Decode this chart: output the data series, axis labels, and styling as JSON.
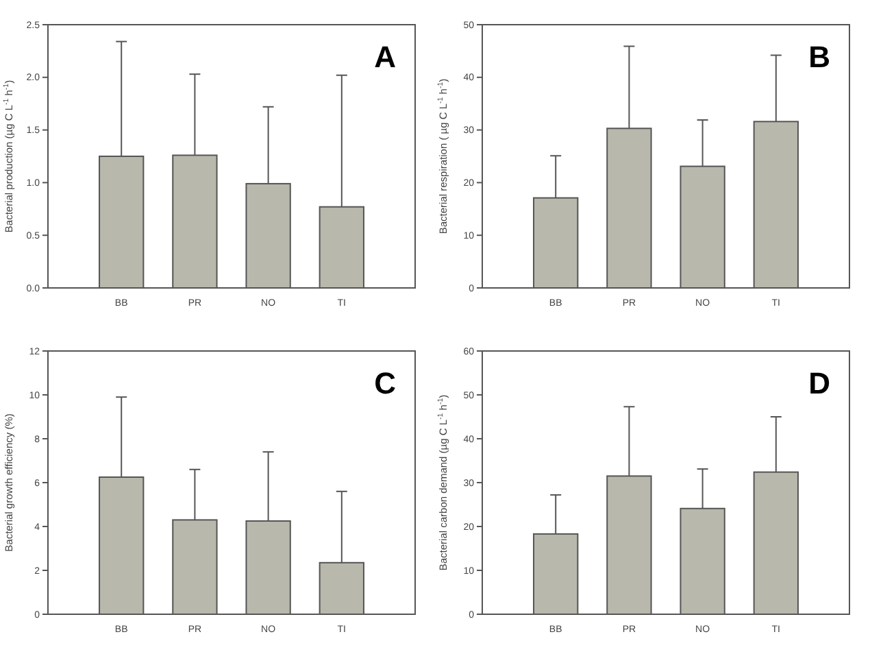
{
  "chart_data": [
    {
      "type": "bar",
      "categories": [
        "BB",
        "PR",
        "NO",
        "TI"
      ],
      "values": [
        1.25,
        1.26,
        0.99,
        0.77
      ],
      "color": "#b9b8ac",
      "errors": [
        [
          1.25,
          2.34
        ],
        [
          1.26,
          2.03
        ],
        [
          0.99,
          1.72
        ],
        [
          0.77,
          2.02
        ]
      ],
      "ylabel": "Bacterial production (µg C L$^{-1}$ h$^{-1}$)",
      "ylim": [
        0,
        2.5
      ],
      "yticks": [
        {
          "value": 0,
          "label": "0.0"
        },
        {
          "value": 0.5,
          "label": "0.5"
        },
        {
          "value": 1,
          "label": "1.0"
        },
        {
          "value": 1.5,
          "label": "1.5"
        },
        {
          "value": 2,
          "label": "2.0"
        },
        {
          "value": 2.5,
          "label": "2.5"
        }
      ],
      "annotations": [
        "A"
      ]
    },
    {
      "type": "bar",
      "categories": [
        "BB",
        "PR",
        "NO",
        "TI"
      ],
      "values": [
        17.1,
        30.3,
        23.1,
        31.6
      ],
      "color": "#b9b8ac",
      "errors": [
        [
          17.1,
          25.1
        ],
        [
          30.3,
          45.9
        ],
        [
          23.1,
          31.9
        ],
        [
          31.6,
          44.2
        ]
      ],
      "ylabel": "Bacterial respiration ( µg C L$^{-1}$ h$^{-1}$)",
      "ylim": [
        0,
        50
      ],
      "yticks": [
        0,
        10,
        20,
        30,
        40,
        50
      ],
      "annotations": [
        "B"
      ]
    },
    {
      "type": "bar",
      "categories": [
        "BB",
        "PR",
        "NO",
        "TI"
      ],
      "values": [
        6.25,
        4.3,
        4.25,
        2.35
      ],
      "color": "#b9b8ac",
      "errors": [
        [
          6.25,
          9.9
        ],
        [
          4.3,
          6.6
        ],
        [
          4.25,
          7.4
        ],
        [
          2.35,
          5.6
        ]
      ],
      "ylabel": "Bacterial growth efficiency (%)",
      "ylim": [
        0,
        12
      ],
      "yticks": [
        0,
        2,
        4,
        6,
        8,
        10,
        12
      ],
      "annotations": [
        "C"
      ]
    },
    {
      "type": "bar",
      "categories": [
        "BB",
        "PR",
        "NO",
        "TI"
      ],
      "values": [
        18.3,
        31.5,
        24.1,
        32.4
      ],
      "color": "#b9b8ac",
      "errors": [
        [
          18.3,
          27.2
        ],
        [
          31.5,
          47.3
        ],
        [
          24.1,
          33.1
        ],
        [
          32.4,
          45.0
        ]
      ],
      "ylabel": "Bacterial carbon demand (µg C L$^{-1}$ h$^{-1}$)",
      "ylim": [
        0,
        60
      ],
      "yticks": [
        0,
        10,
        20,
        30,
        40,
        50,
        60
      ],
      "annotations": [
        "D"
      ]
    }
  ]
}
